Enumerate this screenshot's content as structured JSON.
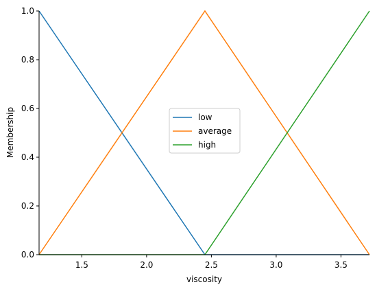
{
  "chart_data": {
    "type": "line",
    "title": "",
    "xlabel": "viscosity",
    "ylabel": "Membership",
    "xlim": [
      1.17,
      3.72
    ],
    "ylim": [
      0.0,
      1.0
    ],
    "x_ticks": [
      1.5,
      2.0,
      2.5,
      3.0,
      3.5
    ],
    "x_tick_labels": [
      "1.5",
      "2.0",
      "2.5",
      "3.0",
      "3.5"
    ],
    "y_ticks": [
      0.0,
      0.2,
      0.4,
      0.6,
      0.8,
      1.0
    ],
    "y_tick_labels": [
      "0.0",
      "0.2",
      "0.4",
      "0.6",
      "0.8",
      "1.0"
    ],
    "grid": false,
    "legend_position": "center",
    "series": [
      {
        "name": "low",
        "color": "#1f77b4",
        "x": [
          1.17,
          2.45,
          3.72
        ],
        "y": [
          1.0,
          0.0,
          0.0
        ]
      },
      {
        "name": "average",
        "color": "#ff7f0e",
        "x": [
          1.17,
          2.45,
          3.72
        ],
        "y": [
          0.0,
          1.0,
          0.0
        ]
      },
      {
        "name": "high",
        "color": "#2ca02c",
        "x": [
          1.17,
          2.45,
          3.72
        ],
        "y": [
          0.0,
          0.0,
          1.0
        ]
      }
    ]
  }
}
